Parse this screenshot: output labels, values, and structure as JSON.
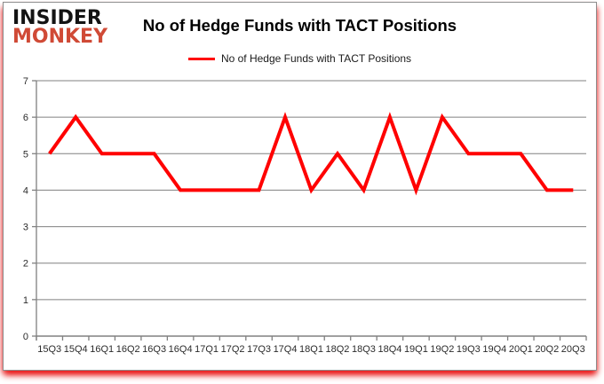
{
  "logo": {
    "line1": "INSIDER",
    "line2": "MONKEY",
    "monkey_color": "#d04a36"
  },
  "header": {
    "title": "No of Hedge Funds with TACT Positions"
  },
  "legend": {
    "label": "No of Hedge Funds with TACT Positions",
    "color": "#ff0000"
  },
  "colors": {
    "line": "#ff0000",
    "grid": "#808080",
    "axis_text": "#2b2b2b",
    "frame_border": "#8c8c8c",
    "shadow_red": "#e81212"
  },
  "chart_data": {
    "type": "line",
    "title": "No of Hedge Funds with TACT Positions",
    "xlabel": "",
    "ylabel": "",
    "categories": [
      "15Q3",
      "15Q4",
      "16Q1",
      "16Q2",
      "16Q3",
      "16Q4",
      "17Q1",
      "17Q2",
      "17Q3",
      "17Q4",
      "18Q1",
      "18Q2",
      "18Q3",
      "18Q4",
      "19Q1",
      "19Q2",
      "19Q3",
      "19Q4",
      "20Q1",
      "20Q2",
      "20Q3"
    ],
    "series": [
      {
        "name": "No of Hedge Funds with TACT Positions",
        "color": "#ff0000",
        "values": [
          5,
          6,
          5,
          5,
          5,
          4,
          4,
          4,
          4,
          6,
          4,
          5,
          4,
          6,
          4,
          6,
          5,
          5,
          5,
          4,
          4
        ]
      }
    ],
    "ylim": [
      0,
      7
    ],
    "yticks": [
      0,
      1,
      2,
      3,
      4,
      5,
      6,
      7
    ],
    "grid": true,
    "legend_position": "top-center"
  }
}
